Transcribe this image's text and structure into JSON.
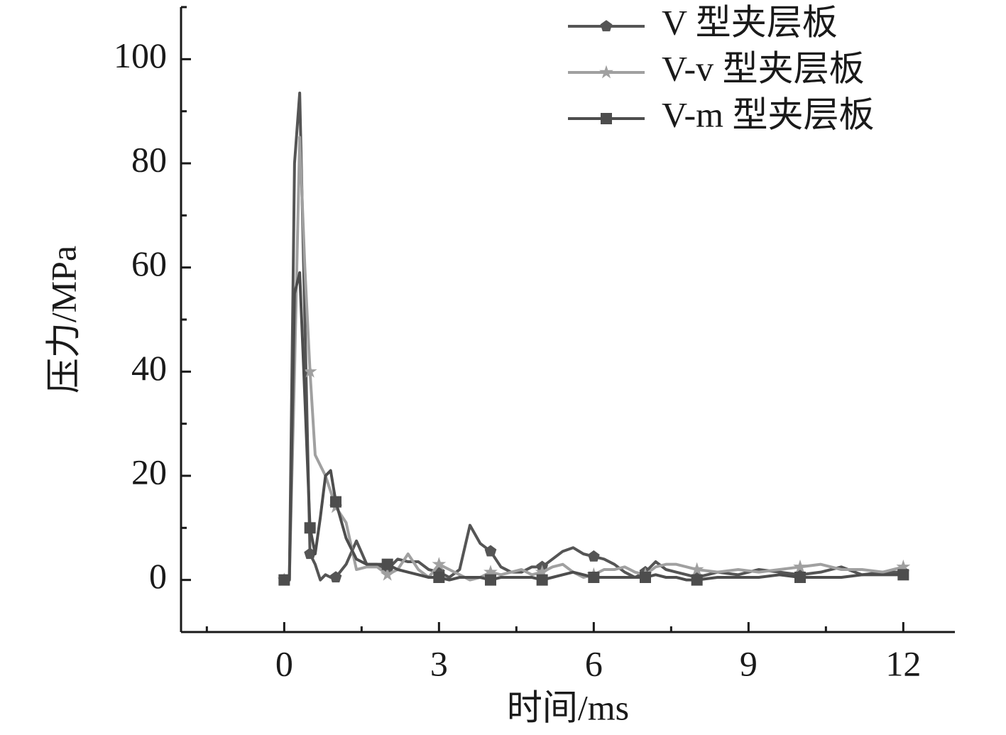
{
  "chart_data": {
    "type": "line",
    "x_label": "时间/ms",
    "y_label": "压力/MPa",
    "xlim": [
      -2,
      13
    ],
    "xticks": [
      0,
      3,
      6,
      9,
      12
    ],
    "ylim": [
      -10,
      110
    ],
    "yticks": [
      0,
      20,
      40,
      60,
      80,
      100
    ],
    "x": [
      0,
      0.1,
      0.2,
      0.3,
      0.4,
      0.5,
      0.6,
      0.7,
      0.8,
      0.9,
      1.0,
      1.2,
      1.4,
      1.6,
      1.8,
      2.0,
      2.2,
      2.4,
      2.6,
      2.8,
      3.0,
      3.2,
      3.4,
      3.6,
      3.8,
      4.0,
      4.2,
      4.4,
      4.6,
      4.8,
      5.0,
      5.2,
      5.4,
      5.6,
      5.8,
      6.0,
      6.2,
      6.4,
      6.6,
      6.8,
      7.0,
      7.2,
      7.4,
      7.6,
      7.8,
      8.0,
      8.4,
      8.8,
      9.2,
      9.6,
      10.0,
      10.4,
      10.8,
      11.2,
      11.6,
      12.0
    ],
    "series": [
      {
        "name": "V 型夹层板",
        "color": "#555555",
        "marker": "pentagon",
        "values": [
          0,
          0,
          80,
          93.5,
          50,
          5,
          3,
          0,
          1,
          0.5,
          0.5,
          3,
          7.5,
          3,
          3,
          2,
          4,
          3.5,
          3.5,
          2,
          1.5,
          0.5,
          2,
          10.5,
          7,
          5.5,
          2.5,
          1.5,
          1.5,
          2.5,
          2.5,
          4,
          5.5,
          6.2,
          5,
          4.5,
          4,
          3,
          1.5,
          0.5,
          1.5,
          3.5,
          2,
          1.5,
          1,
          0.5,
          1.5,
          1,
          2,
          1.5,
          1,
          1.5,
          2.5,
          1,
          1.5,
          1.5
        ]
      },
      {
        "name": "V-v 型夹层板",
        "color": "#a0a0a0",
        "marker": "star",
        "values": [
          0,
          0,
          40,
          85,
          60,
          40,
          24,
          22,
          20,
          17,
          14,
          11,
          2,
          2.5,
          2.5,
          1,
          2,
          5,
          2,
          0.5,
          3,
          2,
          1,
          0,
          0.5,
          1.5,
          1,
          1.5,
          2,
          1,
          1.5,
          2.5,
          3,
          1.5,
          0.5,
          1,
          2,
          2,
          2.5,
          1.5,
          1,
          2.5,
          3,
          3,
          2.5,
          2,
          1.5,
          2,
          1.5,
          2,
          2.5,
          3,
          2,
          2,
          1.5,
          2.5
        ]
      },
      {
        "name": "V-m 型夹层板",
        "color": "#4d4d4d",
        "marker": "square",
        "values": [
          0,
          0,
          55,
          59,
          35,
          10,
          5,
          12,
          20,
          21,
          15,
          8,
          4,
          3,
          3,
          3,
          2,
          1.5,
          1,
          0.5,
          0.5,
          0,
          0.5,
          0.5,
          0.5,
          0,
          0.5,
          0.5,
          0.5,
          0.5,
          0,
          0.5,
          1,
          1.5,
          1,
          0.5,
          0.5,
          0.5,
          0.5,
          0.5,
          0.5,
          1,
          0.5,
          0.5,
          0,
          0,
          0.5,
          0.5,
          0.5,
          1,
          0.5,
          0.5,
          0.5,
          1,
          1,
          1
        ]
      }
    ],
    "legend": "top-right"
  }
}
